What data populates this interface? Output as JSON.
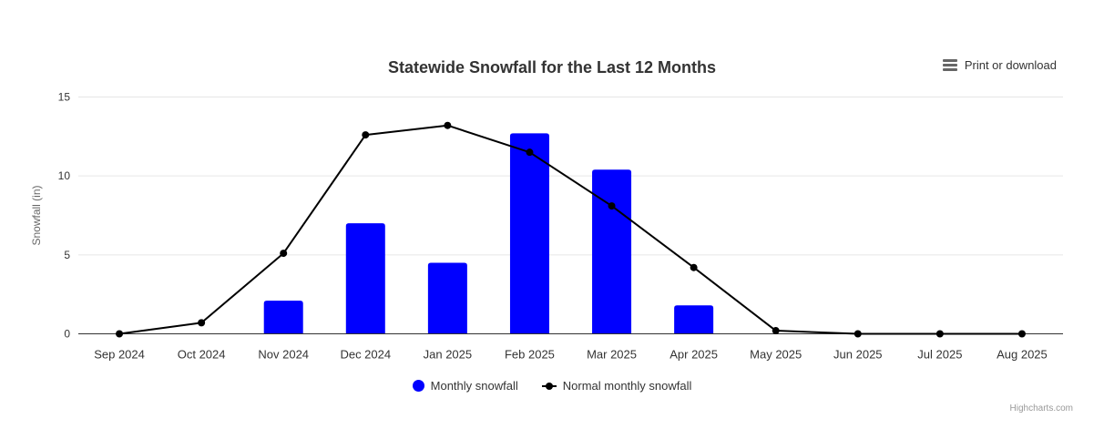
{
  "header": {
    "export_label": "Print or download"
  },
  "credits": "Highcharts.com",
  "chart_data": {
    "type": "combo",
    "title": "Statewide Snowfall for the Last 12 Months",
    "xlabel": "",
    "ylabel": "Snowfall (in)",
    "ylim": [
      0,
      15
    ],
    "yticks": [
      0,
      5,
      10,
      15
    ],
    "grid": true,
    "legend_position": "bottom-center",
    "categories": [
      "Sep 2024",
      "Oct 2024",
      "Nov 2024",
      "Dec 2024",
      "Jan 2025",
      "Feb 2025",
      "Mar 2025",
      "Apr 2025",
      "May 2025",
      "Jun 2025",
      "Jul 2025",
      "Aug 2025"
    ],
    "series": [
      {
        "name": "Monthly snowfall",
        "type": "column",
        "color": "#0000ff",
        "values": [
          0,
          0,
          2.1,
          7,
          4.5,
          12.7,
          10.4,
          1.8,
          0,
          0,
          0,
          0
        ]
      },
      {
        "name": "Normal monthly snowfall",
        "type": "line",
        "color": "#000000",
        "values": [
          0,
          0.7,
          5.1,
          12.6,
          13.2,
          11.5,
          8.1,
          4.2,
          0.2,
          0,
          0,
          0
        ]
      }
    ],
    "colors": {
      "gridline": "#e6e6e6",
      "axis_line": "#333333",
      "axis_label": "#333333",
      "axis_title": "#666666"
    }
  }
}
